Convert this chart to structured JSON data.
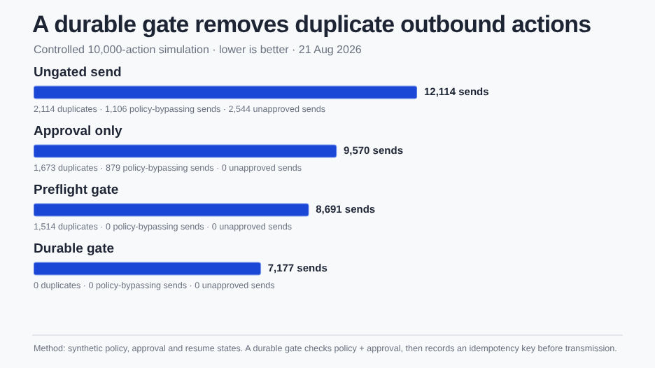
{
  "chart_data": {
    "type": "bar",
    "orientation": "horizontal",
    "title": "A durable gate removes duplicate outbound actions",
    "subtitle": "Controlled 10,000-action simulation · lower is better · 21 Aug 2026",
    "categories": [
      "Ungated send",
      "Approval only",
      "Preflight gate",
      "Durable gate"
    ],
    "values": [
      12114,
      9570,
      8691,
      7177
    ],
    "value_labels": [
      "12,114 sends",
      "9,570 sends",
      "8,691 sends",
      "7,177 sends"
    ],
    "color": "#1a47d6",
    "annotations": [
      {
        "text": "2,114 duplicates · 1,106 policy-bypassing sends · 2,544 unapproved sends",
        "y": "Ungated send"
      },
      {
        "text": "1,673 duplicates · 879 policy-bypassing sends · 0 unapproved sends",
        "y": "Approval only"
      },
      {
        "text": "1,514 duplicates · 0 policy-bypassing sends · 0 unapproved sends",
        "y": "Preflight gate"
      },
      {
        "text": "0 duplicates · 0 policy-bypassing sends · 0 unapproved sends",
        "y": "Durable gate"
      },
      "Method: synthetic policy, approval and resume states. A durable gate checks policy + approval, then records an idempotency key before transmission."
    ],
    "legend": false
  }
}
